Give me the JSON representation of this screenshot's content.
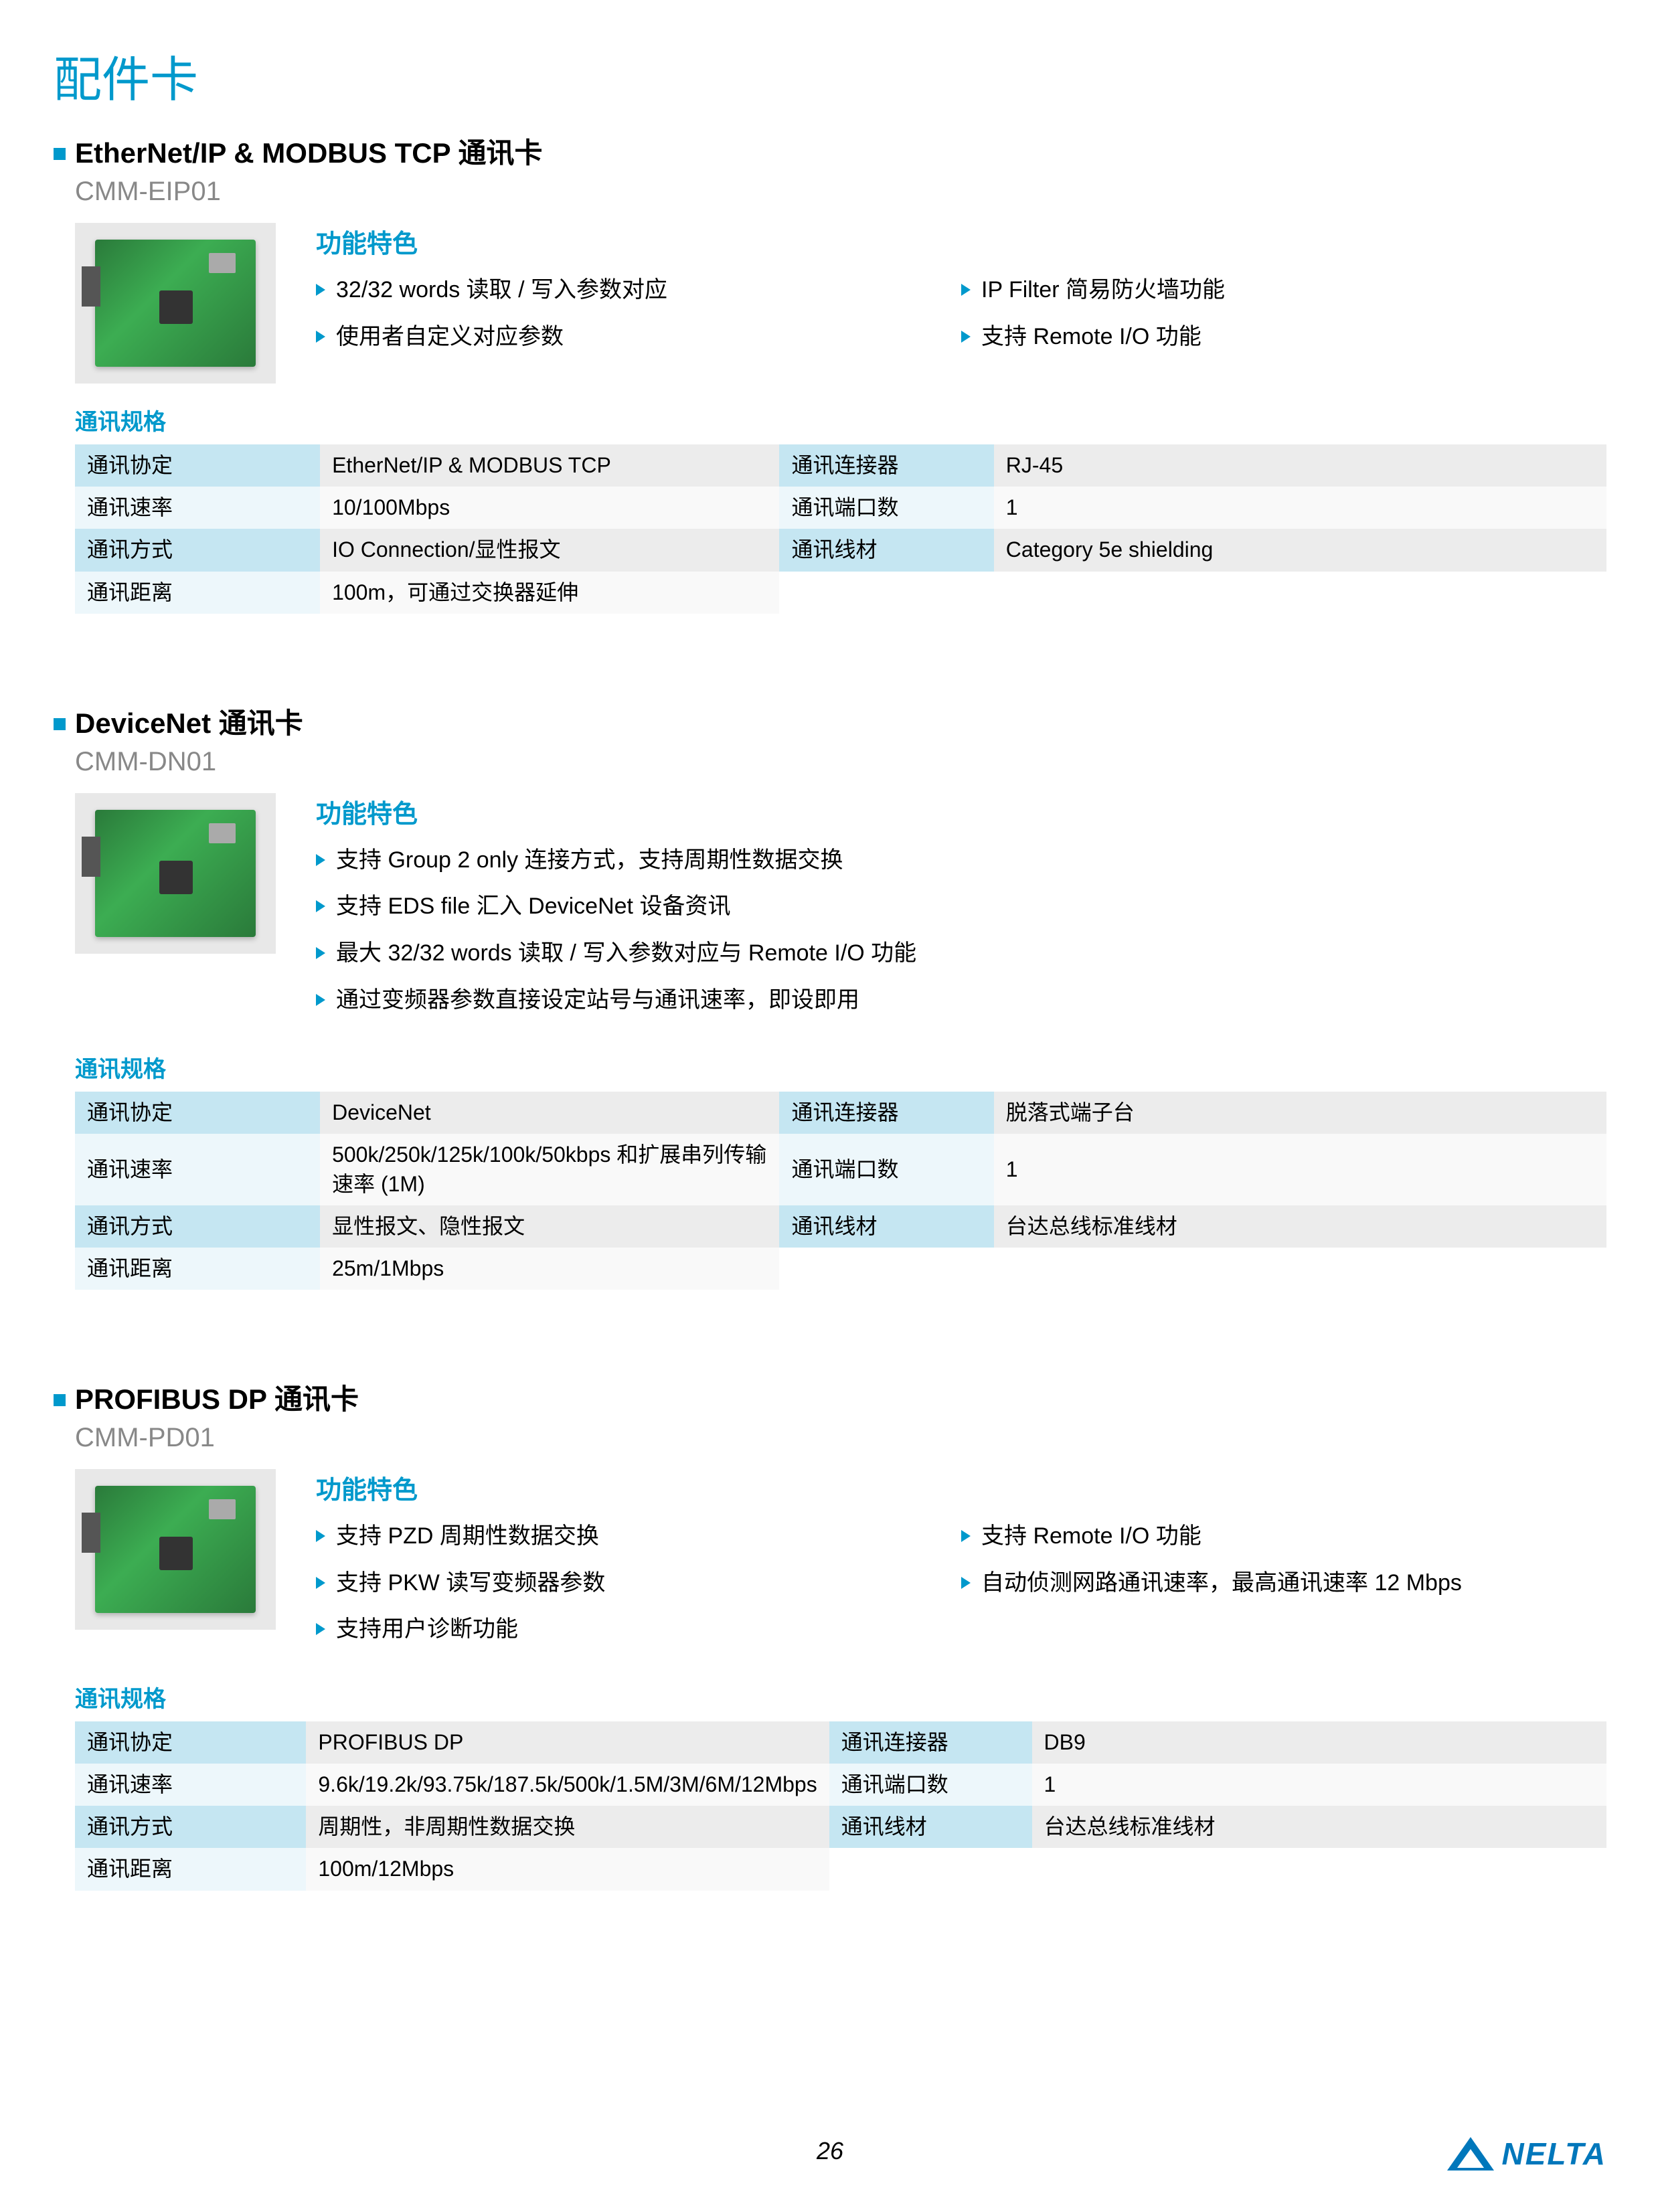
{
  "page": {
    "title": "配件卡",
    "number": "26",
    "brand": "NELTA"
  },
  "colors": {
    "accent": "#0099cc",
    "header_row_odd_label": "#c5e6f2",
    "header_row_odd_value": "#ececec",
    "header_row_even_label": "#edf7fb",
    "header_row_even_value": "#f9f9f9",
    "pcb_green": "#3cad52",
    "brand": "#0077bb"
  },
  "sections": [
    {
      "title": "EtherNet/IP & MODBUS TCP 通讯卡",
      "model": "CMM-EIP01",
      "feat_title": "功能特色",
      "feat_cols": [
        [
          "32/32 words 读取 / 写入参数对应",
          "使用者自定义对应参数"
        ],
        [
          "IP Filter 简易防火墙功能",
          "支持 Remote I/O 功能"
        ]
      ],
      "spec_title": "通讯规格",
      "specs": [
        [
          "通讯协定",
          "EtherNet/IP & MODBUS TCP",
          "通讯连接器",
          "RJ-45"
        ],
        [
          "通讯速率",
          "10/100Mbps",
          "通讯端口数",
          "1"
        ],
        [
          "通讯方式",
          "IO Connection/显性报文",
          "通讯线材",
          "Category 5e shielding"
        ],
        [
          "通讯距离",
          "100m，可通过交换器延伸",
          "",
          ""
        ]
      ]
    },
    {
      "title": "DeviceNet 通讯卡",
      "model": "CMM-DN01",
      "feat_title": "功能特色",
      "feat_cols": [
        [
          "支持 Group 2 only 连接方式，支持周期性数据交换",
          "支持 EDS file 汇入 DeviceNet 设备资讯",
          "最大 32/32 words 读取 / 写入参数对应与 Remote I/O 功能",
          "通过变频器参数直接设定站号与通讯速率，即设即用"
        ]
      ],
      "spec_title": "通讯规格",
      "specs": [
        [
          "通讯协定",
          "DeviceNet",
          "通讯连接器",
          "脱落式端子台"
        ],
        [
          "通讯速率",
          "500k/250k/125k/100k/50kbps 和扩展串列传输速率 (1M)",
          "通讯端口数",
          "1"
        ],
        [
          "通讯方式",
          "显性报文、隐性报文",
          "通讯线材",
          "台达总线标准线材"
        ],
        [
          "通讯距离",
          "25m/1Mbps",
          "",
          ""
        ]
      ]
    },
    {
      "title": "PROFIBUS DP 通讯卡",
      "model": "CMM-PD01",
      "feat_title": "功能特色",
      "feat_cols": [
        [
          "支持 PZD 周期性数据交换",
          "支持 PKW 读写变频器参数",
          "支持用户诊断功能"
        ],
        [
          "支持 Remote I/O 功能",
          "自动侦测网路通讯速率，最高通讯速率 12 Mbps"
        ]
      ],
      "spec_title": "通讯规格",
      "specs": [
        [
          "通讯协定",
          "PROFIBUS DP",
          "通讯连接器",
          "DB9"
        ],
        [
          "通讯速率",
          "9.6k/19.2k/93.75k/187.5k/500k/1.5M/3M/6M/12Mbps",
          "通讯端口数",
          "1"
        ],
        [
          "通讯方式",
          "周期性，非周期性数据交换",
          "通讯线材",
          "台达总线标准线材"
        ],
        [
          "通讯距离",
          "100m/12Mbps",
          "",
          ""
        ]
      ]
    }
  ]
}
